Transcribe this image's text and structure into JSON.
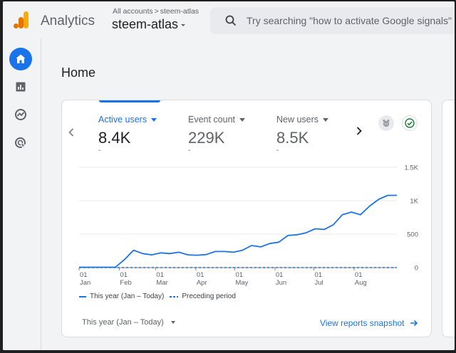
{
  "header": {
    "app_name": "Analytics",
    "breadcrumb": {
      "account": "All accounts",
      "separator": ">",
      "property": "steem-atlas"
    },
    "property_name": "steem-atlas",
    "search_placeholder": "Try searching \"how to activate Google signals\""
  },
  "sidebar": {
    "items": [
      {
        "name": "home-icon",
        "active": true
      },
      {
        "name": "reports-icon",
        "active": false
      },
      {
        "name": "explore-icon",
        "active": false
      },
      {
        "name": "advertising-icon",
        "active": false
      }
    ]
  },
  "page": {
    "title": "Home"
  },
  "card": {
    "metrics": [
      {
        "label": "Active users",
        "value": "8.4K",
        "delta": "-",
        "active": true
      },
      {
        "label": "Event count",
        "value": "229K",
        "delta": "-",
        "active": false
      },
      {
        "label": "New users",
        "value": "8.5K",
        "delta": "-",
        "active": false
      }
    ],
    "legend": {
      "current": "This year (Jan – Today)",
      "previous": "Preceding period"
    },
    "date_range": "This year (Jan – Today)",
    "view_link": "View reports snapshot"
  },
  "chart_data": {
    "type": "line",
    "y_ticks": [
      "0",
      "500",
      "1K",
      "1.5K"
    ],
    "ylim": [
      0,
      1500
    ],
    "x_ticks": [
      {
        "day": "01",
        "month": "Jan"
      },
      {
        "day": "01",
        "month": "Feb"
      },
      {
        "day": "01",
        "month": "Mar"
      },
      {
        "day": "01",
        "month": "Apr"
      },
      {
        "day": "01",
        "month": "May"
      },
      {
        "day": "01",
        "month": "Jun"
      },
      {
        "day": "01",
        "month": "Jul"
      },
      {
        "day": "01",
        "month": "Aug"
      }
    ],
    "series": [
      {
        "name": "This year (Jan – Today)",
        "style": "solid",
        "x": [
          "01 Jan",
          "08 Jan",
          "15 Jan",
          "22 Jan",
          "29 Jan",
          "05 Feb",
          "12 Feb",
          "19 Feb",
          "26 Feb",
          "05 Mar",
          "12 Mar",
          "19 Mar",
          "26 Mar",
          "02 Apr",
          "09 Apr",
          "16 Apr",
          "23 Apr",
          "30 Apr",
          "07 May",
          "14 May",
          "21 May",
          "28 May",
          "04 Jun",
          "11 Jun",
          "18 Jun",
          "25 Jun",
          "02 Jul",
          "09 Jul",
          "16 Jul",
          "23 Jul",
          "30 Jul",
          "06 Aug",
          "13 Aug",
          "20 Aug",
          "27 Aug",
          "03 Sep"
        ],
        "values": [
          5,
          5,
          5,
          5,
          5,
          120,
          260,
          210,
          190,
          220,
          210,
          230,
          190,
          185,
          195,
          240,
          240,
          230,
          260,
          330,
          310,
          360,
          380,
          480,
          490,
          520,
          580,
          570,
          640,
          790,
          830,
          790,
          920,
          1020,
          1080,
          1080
        ]
      },
      {
        "name": "Preceding period",
        "style": "dashed",
        "x": [
          "01 Jan",
          "03 Sep"
        ],
        "values": [
          0,
          0
        ]
      }
    ]
  },
  "colors": {
    "accent": "#1a73e8",
    "logo_orange": "#f9ab00",
    "logo_dark_orange": "#e37400"
  }
}
